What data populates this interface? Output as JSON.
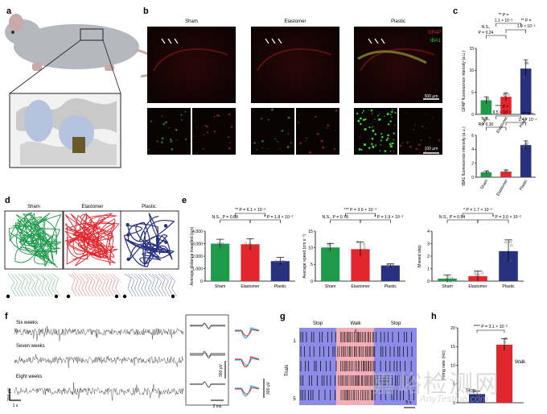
{
  "panel_letters": {
    "a": "a",
    "b": "b",
    "c": "c",
    "d": "d",
    "e": "e",
    "f": "f",
    "g": "g",
    "h": "h"
  },
  "conditions": [
    "Sham",
    "Elastomer",
    "Plastic"
  ],
  "colors": {
    "sham": "#1e9a4b",
    "elastomer": "#e3262d",
    "plastic": "#27317d",
    "walk": "#f3aeb8",
    "stop": "#8c8ce8",
    "trace_cyan": "#21b0e0"
  },
  "panel_b": {
    "legend_gfap": "GFAP",
    "legend_iba1": "IBA1",
    "scale_top": "500 μm",
    "scale_bottom": "100 μm"
  },
  "panel_c_top": {
    "ylabel": "GFAP fluorescence intensity (a.u.)",
    "ylim": [
      0,
      15
    ],
    "yticks": [
      0,
      5,
      10,
      15
    ],
    "values": [
      3.2,
      4.0,
      10.4
    ],
    "errors": [
      0.8,
      0.9,
      2.0
    ],
    "sig_top_stars": "**",
    "sig_top_p": "P =",
    "sig_top_val": "1.1 × 10⁻²",
    "sig_left_ns": "N.S.,",
    "sig_left_p": "P = 0.24",
    "sig_right_stars": "** P =",
    "sig_right_val": "1.9 × 10⁻²"
  },
  "panel_c_bottom": {
    "ylabel": "IBA1 fluorescence intensity (a.u.)",
    "ylim": [
      0,
      6
    ],
    "yticks": [
      0,
      2,
      4,
      6
    ],
    "values": [
      0.7,
      0.8,
      4.6
    ],
    "errors": [
      0.2,
      0.25,
      0.6
    ],
    "sig_top_stars": "**** P =",
    "sig_top_val": "8.5 × 10⁻⁶",
    "sig_left_ns": "N.S.,",
    "sig_left_p": "P = 0.30",
    "sig_right_stars": "*** P =",
    "sig_right_val": "1.4 × 10⁻⁴"
  },
  "panel_e": [
    {
      "ylabel": "Average distance travelled (cm)",
      "ylim": [
        0,
        4000
      ],
      "yticks": [
        "0",
        "1,000",
        "2,000",
        "3,000",
        "4,000"
      ],
      "values": [
        3000,
        2950,
        1600
      ],
      "errors": [
        350,
        450,
        300
      ],
      "sig_top": "** P = 6.1 × 10⁻³",
      "sig_left": "N.S., P = 0.88",
      "sig_right": "* P = 1.8 × 10⁻²"
    },
    {
      "ylabel": "Average speed (cm s⁻¹)",
      "ylim": [
        0,
        15
      ],
      "yticks": [
        "0",
        "5",
        "10",
        "15"
      ],
      "values": [
        10.1,
        9.6,
        4.7
      ],
      "errors": [
        1.2,
        2.2,
        0.5
      ],
      "sig_top": "*** P = 3.9 × 10⁻⁴",
      "sig_left": "N.S., P = 0.78",
      "sig_right": "* P = 1.9 × 10⁻²"
    },
    {
      "ylabel": "Missed step",
      "ylim": [
        0,
        4
      ],
      "yticks": [
        "0",
        "1",
        "2",
        "3",
        "4"
      ],
      "values": [
        0.2,
        0.4,
        2.4
      ],
      "errors": [
        0.3,
        0.4,
        0.9
      ],
      "sig_top": "* P = 1.7 × 10⁻²",
      "sig_left": "N.S., P = 0.54",
      "sig_right": "* P = 3.0 × 10⁻²"
    }
  ],
  "panel_f": {
    "rows": [
      "Six weeks",
      "Seven weeks",
      "Eight weeks"
    ],
    "scale_v": "200 μV",
    "scale_t": "1 s",
    "inset_v": "300 μV",
    "inset_t": "2 ms",
    "spike_v": "300 μV"
  },
  "panel_g": {
    "stop_left": "Stop",
    "walk": "Walk",
    "stop_right": "Stop",
    "ylabel": "Trials",
    "tick_1": "1",
    "tick_5": "5",
    "scale": "5 s"
  },
  "panel_h": {
    "ylabel": "Firing rate (Hz)",
    "ylim": [
      0,
      20
    ],
    "yticks": [
      "0",
      "5",
      "10",
      "15",
      "20"
    ],
    "values": [
      2.3,
      15.5
    ],
    "errors": [
      0.8,
      1.6
    ],
    "labels": [
      "Stop",
      "Walk"
    ],
    "sig": "**** P = 3.1 × 10⁻⁶"
  },
  "watermark": {
    "line1": "嘉峪检测网",
    "line2": "AnyTesting.com"
  }
}
